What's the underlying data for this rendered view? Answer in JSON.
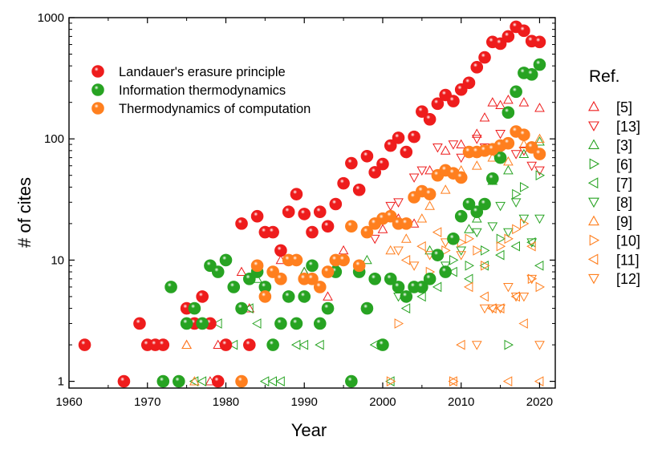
{
  "chart_data": {
    "type": "scatter",
    "title": "",
    "xlabel": "Year",
    "ylabel": "# of cites",
    "xlim": [
      1960,
      2022
    ],
    "ylim": [
      0.88,
      1000
    ],
    "yscale": "log",
    "x_ticks": [
      1960,
      1970,
      1980,
      1990,
      2000,
      2010,
      2020
    ],
    "y_ticks": [
      1,
      10,
      100,
      1000
    ],
    "legend_position": "top-left",
    "colors": {
      "red": "#ee1c1c",
      "green": "#27a322",
      "orange": "#ff7f1e",
      "axis": "#000000"
    },
    "series": [
      {
        "name": "Landauer's erasure principle",
        "color": "#ee1c1c",
        "marker": "ball",
        "points": [
          [
            1962,
            2
          ],
          [
            1967,
            1
          ],
          [
            1969,
            3
          ],
          [
            1970,
            2
          ],
          [
            1971,
            2
          ],
          [
            1972,
            2
          ],
          [
            1975,
            4
          ],
          [
            1976,
            3
          ],
          [
            1977,
            5
          ],
          [
            1978,
            3
          ],
          [
            1979,
            1
          ],
          [
            1980,
            2
          ],
          [
            1982,
            20
          ],
          [
            1983,
            2
          ],
          [
            1984,
            23
          ],
          [
            1985,
            17
          ],
          [
            1986,
            17
          ],
          [
            1987,
            12
          ],
          [
            1988,
            25
          ],
          [
            1989,
            35
          ],
          [
            1990,
            24
          ],
          [
            1991,
            17
          ],
          [
            1992,
            25
          ],
          [
            1993,
            19
          ],
          [
            1994,
            29
          ],
          [
            1995,
            43
          ],
          [
            1996,
            63
          ],
          [
            1997,
            38
          ],
          [
            1998,
            72
          ],
          [
            1999,
            53
          ],
          [
            2000,
            62
          ],
          [
            2001,
            88
          ],
          [
            2002,
            102
          ],
          [
            2003,
            78
          ],
          [
            2004,
            104
          ],
          [
            2005,
            168
          ],
          [
            2006,
            145
          ],
          [
            2007,
            195
          ],
          [
            2008,
            230
          ],
          [
            2009,
            205
          ],
          [
            2010,
            255
          ],
          [
            2011,
            290
          ],
          [
            2012,
            390
          ],
          [
            2013,
            470
          ],
          [
            2014,
            630
          ],
          [
            2015,
            610
          ],
          [
            2016,
            700
          ],
          [
            2017,
            840
          ],
          [
            2018,
            780
          ],
          [
            2019,
            640
          ],
          [
            2020,
            630
          ]
        ]
      },
      {
        "name": "Information thermodynamics",
        "color": "#27a322",
        "marker": "ball",
        "points": [
          [
            1972,
            1
          ],
          [
            1973,
            6
          ],
          [
            1974,
            1
          ],
          [
            1975,
            3
          ],
          [
            1976,
            4
          ],
          [
            1977,
            3
          ],
          [
            1978,
            9
          ],
          [
            1979,
            8
          ],
          [
            1980,
            10
          ],
          [
            1981,
            6
          ],
          [
            1982,
            4
          ],
          [
            1983,
            7
          ],
          [
            1984,
            8
          ],
          [
            1985,
            6
          ],
          [
            1986,
            2
          ],
          [
            1987,
            3
          ],
          [
            1988,
            5
          ],
          [
            1989,
            3
          ],
          [
            1990,
            5
          ],
          [
            1991,
            9
          ],
          [
            1992,
            3
          ],
          [
            1993,
            4
          ],
          [
            1994,
            8
          ],
          [
            1996,
            1
          ],
          [
            1997,
            8
          ],
          [
            1998,
            4
          ],
          [
            1999,
            7
          ],
          [
            2000,
            2
          ],
          [
            2001,
            7
          ],
          [
            2002,
            6
          ],
          [
            2003,
            5
          ],
          [
            2004,
            6
          ],
          [
            2005,
            6
          ],
          [
            2006,
            7
          ],
          [
            2007,
            11
          ],
          [
            2008,
            8
          ],
          [
            2009,
            15
          ],
          [
            2010,
            23
          ],
          [
            2011,
            29
          ],
          [
            2012,
            25
          ],
          [
            2013,
            29
          ],
          [
            2014,
            47
          ],
          [
            2015,
            70
          ],
          [
            2016,
            165
          ],
          [
            2017,
            245
          ],
          [
            2018,
            350
          ],
          [
            2019,
            340
          ],
          [
            2020,
            410
          ]
        ]
      },
      {
        "name": "Thermodynamics of computation",
        "color": "#ff7f1e",
        "marker": "ball",
        "points": [
          [
            1982,
            1
          ],
          [
            1984,
            9
          ],
          [
            1985,
            5
          ],
          [
            1986,
            8
          ],
          [
            1987,
            7
          ],
          [
            1988,
            10
          ],
          [
            1989,
            10
          ],
          [
            1990,
            7
          ],
          [
            1991,
            7
          ],
          [
            1992,
            6
          ],
          [
            1993,
            8
          ],
          [
            1994,
            10
          ],
          [
            1995,
            10
          ],
          [
            1996,
            19
          ],
          [
            1997,
            9
          ],
          [
            1998,
            17
          ],
          [
            1999,
            20
          ],
          [
            2000,
            22
          ],
          [
            2001,
            23
          ],
          [
            2002,
            20
          ],
          [
            2003,
            20
          ],
          [
            2004,
            33
          ],
          [
            2005,
            37
          ],
          [
            2006,
            35
          ],
          [
            2007,
            50
          ],
          [
            2008,
            55
          ],
          [
            2009,
            52
          ],
          [
            2010,
            48
          ],
          [
            2011,
            78
          ],
          [
            2012,
            78
          ],
          [
            2013,
            80
          ],
          [
            2014,
            82
          ],
          [
            2015,
            88
          ],
          [
            2016,
            92
          ],
          [
            2017,
            115
          ],
          [
            2018,
            108
          ],
          [
            2019,
            85
          ],
          [
            2020,
            75
          ]
        ]
      }
    ],
    "ref_legend_title": "Ref.",
    "ref_series": [
      {
        "name": "[5]",
        "color": "#ee1c1c",
        "marker": "tri-up",
        "points": [
          [
            1975,
            2
          ],
          [
            1978,
            1
          ],
          [
            1979,
            2
          ],
          [
            1982,
            8
          ],
          [
            1983,
            4
          ],
          [
            1987,
            10
          ],
          [
            1990,
            8
          ],
          [
            1993,
            5
          ],
          [
            1995,
            12
          ],
          [
            2000,
            18
          ],
          [
            2002,
            22
          ],
          [
            2004,
            20
          ],
          [
            2006,
            55
          ],
          [
            2008,
            80
          ],
          [
            2010,
            90
          ],
          [
            2012,
            110
          ],
          [
            2013,
            150
          ],
          [
            2014,
            200
          ],
          [
            2015,
            190
          ],
          [
            2016,
            210
          ],
          [
            2018,
            200
          ],
          [
            2020,
            180
          ]
        ]
      },
      {
        "name": "[13]",
        "color": "#ee1c1c",
        "marker": "tri-down",
        "points": [
          [
            1999,
            15
          ],
          [
            2001,
            28
          ],
          [
            2002,
            30
          ],
          [
            2004,
            48
          ],
          [
            2005,
            55
          ],
          [
            2007,
            85
          ],
          [
            2009,
            90
          ],
          [
            2010,
            70
          ],
          [
            2012,
            100
          ],
          [
            2013,
            85
          ],
          [
            2015,
            110
          ],
          [
            2016,
            90
          ],
          [
            2017,
            75
          ],
          [
            2018,
            80
          ],
          [
            2019,
            60
          ],
          [
            2020,
            55
          ]
        ]
      },
      {
        "name": "[3]",
        "color": "#27a322",
        "marker": "tri-up",
        "points": [
          [
            1984,
            7
          ],
          [
            1990,
            8
          ],
          [
            1994,
            9
          ],
          [
            1998,
            10
          ],
          [
            2003,
            5
          ],
          [
            2006,
            12
          ],
          [
            2009,
            15
          ],
          [
            2011,
            18
          ],
          [
            2012,
            22
          ],
          [
            2014,
            45
          ],
          [
            2016,
            55
          ],
          [
            2018,
            75
          ],
          [
            2020,
            95
          ]
        ]
      },
      {
        "name": "[6]",
        "color": "#27a322",
        "marker": "tri-right",
        "points": [
          [
            2000,
            2
          ],
          [
            2009,
            10
          ],
          [
            2011,
            9
          ],
          [
            2013,
            12
          ],
          [
            2015,
            15
          ],
          [
            2016,
            2
          ],
          [
            2017,
            35
          ],
          [
            2018,
            40
          ],
          [
            2020,
            50
          ]
        ]
      },
      {
        "name": "[7]",
        "color": "#27a322",
        "marker": "tri-left",
        "points": [
          [
            1976,
            1
          ],
          [
            1977,
            1
          ],
          [
            1979,
            3
          ],
          [
            1981,
            2
          ],
          [
            1983,
            4
          ],
          [
            1984,
            3
          ],
          [
            1985,
            1
          ],
          [
            1986,
            1
          ],
          [
            1987,
            1
          ],
          [
            1989,
            2
          ],
          [
            1990,
            2
          ],
          [
            1992,
            2
          ],
          [
            1999,
            2
          ],
          [
            2001,
            1
          ],
          [
            2003,
            4
          ],
          [
            2005,
            5
          ],
          [
            2007,
            6
          ],
          [
            2009,
            8
          ],
          [
            2011,
            7
          ],
          [
            2013,
            9
          ],
          [
            2015,
            11
          ],
          [
            2017,
            13
          ],
          [
            2019,
            14
          ],
          [
            2020,
            9
          ]
        ]
      },
      {
        "name": "[8]",
        "color": "#27a322",
        "marker": "tri-down",
        "points": [
          [
            2002,
            5
          ],
          [
            2006,
            7
          ],
          [
            2008,
            9
          ],
          [
            2010,
            12
          ],
          [
            2012,
            17
          ],
          [
            2014,
            19
          ],
          [
            2015,
            28
          ],
          [
            2016,
            17
          ],
          [
            2017,
            30
          ],
          [
            2018,
            22
          ],
          [
            2019,
            14
          ],
          [
            2020,
            22
          ]
        ]
      },
      {
        "name": "[9]",
        "color": "#ff7f1e",
        "marker": "tri-up",
        "points": [
          [
            1975,
            2
          ],
          [
            1976,
            1
          ],
          [
            2001,
            12
          ],
          [
            2003,
            15
          ],
          [
            2005,
            22
          ],
          [
            2006,
            28
          ],
          [
            2008,
            38
          ],
          [
            2010,
            55
          ],
          [
            2012,
            60
          ],
          [
            2014,
            70
          ],
          [
            2016,
            65
          ],
          [
            2018,
            90
          ],
          [
            2020,
            100
          ]
        ]
      },
      {
        "name": "[10]",
        "color": "#ff7f1e",
        "marker": "tri-right",
        "points": [
          [
            2000,
            2
          ],
          [
            2001,
            1
          ],
          [
            2002,
            3
          ],
          [
            2004,
            6
          ],
          [
            2006,
            8
          ],
          [
            2008,
            12
          ],
          [
            2009,
            1
          ],
          [
            2010,
            14
          ],
          [
            2011,
            15
          ],
          [
            2012,
            12
          ],
          [
            2013,
            9
          ],
          [
            2015,
            13
          ],
          [
            2016,
            15
          ],
          [
            2017,
            18
          ],
          [
            2018,
            20
          ],
          [
            2019,
            7
          ],
          [
            2020,
            6
          ]
        ]
      },
      {
        "name": "[11]",
        "color": "#ff7f1e",
        "marker": "tri-left",
        "points": [
          [
            2003,
            10
          ],
          [
            2005,
            13
          ],
          [
            2007,
            17
          ],
          [
            2009,
            1
          ],
          [
            2010,
            2
          ],
          [
            2011,
            6
          ],
          [
            2013,
            5
          ],
          [
            2014,
            4
          ],
          [
            2015,
            4
          ],
          [
            2016,
            1
          ],
          [
            2017,
            5
          ],
          [
            2018,
            3
          ],
          [
            2019,
            13
          ],
          [
            2020,
            1
          ]
        ]
      },
      {
        "name": "[12]",
        "color": "#ff7f1e",
        "marker": "tri-down",
        "points": [
          [
            2002,
            12
          ],
          [
            2004,
            9
          ],
          [
            2006,
            11
          ],
          [
            2008,
            14
          ],
          [
            2010,
            11
          ],
          [
            2012,
            2
          ],
          [
            2013,
            4
          ],
          [
            2014,
            4
          ],
          [
            2015,
            4
          ],
          [
            2016,
            6
          ],
          [
            2017,
            5
          ],
          [
            2018,
            5
          ],
          [
            2019,
            7
          ],
          [
            2020,
            2
          ]
        ]
      }
    ]
  }
}
